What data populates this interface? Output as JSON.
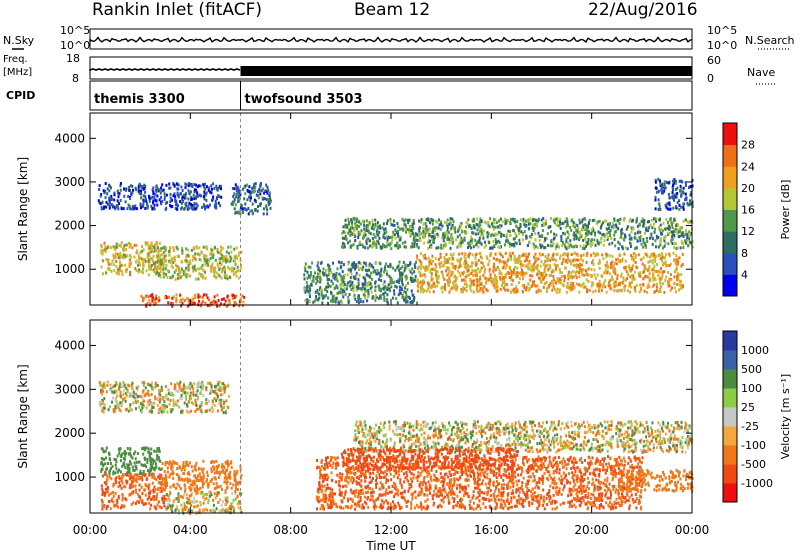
{
  "header": {
    "station": "Rankin Inlet (fitACF)",
    "beam": "Beam 12",
    "date": "22/Aug/2016"
  },
  "top_panels": {
    "nsky_label": "N.Sky",
    "nsearch_label": "N.Search",
    "nsky_ticks": [
      "10^5",
      "10^0"
    ],
    "nsearch_ticks": [
      "10^5",
      "10^0"
    ],
    "freq_label_line1": "Freq.",
    "freq_label_line2": "[MHz]",
    "freq_ticks": [
      "18",
      "8"
    ],
    "nave_label": "Nave",
    "nave_ticks": [
      "60",
      "0"
    ],
    "cpid_label": "CPID",
    "cpid_segments": [
      {
        "name": "themis 3300",
        "start_hour": 0
      },
      {
        "name": "twofsound 3503",
        "start_hour": 6
      }
    ]
  },
  "colors": {
    "power": [
      "#0000ee",
      "#2a4fbf",
      "#2e6e62",
      "#4f9a48",
      "#b4c634",
      "#f0a020",
      "#f07018",
      "#ee1010"
    ],
    "velocity": [
      "#ee1010",
      "#f04a14",
      "#f07818",
      "#f2a83a",
      "#c8c8c8",
      "#8ccc46",
      "#4c8c40",
      "#3a62a8",
      "#2a3aa0"
    ]
  },
  "chart_data": [
    {
      "type": "heatmap",
      "name": "power",
      "xlabel": "Time UT",
      "ylabel": "Slant Range [km]",
      "xlim": [
        0,
        24
      ],
      "ylim": [
        180,
        4580
      ],
      "x_ticks": [
        "00:00",
        "04:00",
        "08:00",
        "12:00",
        "16:00",
        "20:00",
        "00:00"
      ],
      "y_ticks": [
        "1000",
        "2000",
        "3000",
        "4000"
      ],
      "colorbar_label": "Power [dB]",
      "colorbar_ticks": [
        "4",
        "8",
        "12",
        "16",
        "20",
        "24",
        "28"
      ],
      "colorbar_range": [
        0,
        30
      ],
      "regions": [
        {
          "t": [
            0.4,
            2.8
          ],
          "r": [
            900,
            1650
          ],
          "value": 20
        },
        {
          "t": [
            2.5,
            6.0
          ],
          "r": [
            800,
            1550
          ],
          "value": 18
        },
        {
          "t": [
            2.0,
            6.2
          ],
          "r": [
            180,
            450
          ],
          "value": 28
        },
        {
          "t": [
            0.3,
            5.2
          ],
          "r": [
            2400,
            3000
          ],
          "value": 6
        },
        {
          "t": [
            5.6,
            7.2
          ],
          "r": [
            2300,
            3000
          ],
          "value": 8
        },
        {
          "t": [
            10.0,
            24.0
          ],
          "r": [
            1500,
            2200
          ],
          "value": 13
        },
        {
          "t": [
            13.0,
            23.6
          ],
          "r": [
            500,
            1400
          ],
          "value": 22
        },
        {
          "t": [
            8.5,
            13.0
          ],
          "r": [
            250,
            1200
          ],
          "value": 12
        },
        {
          "t": [
            22.5,
            24.0
          ],
          "r": [
            2400,
            3100
          ],
          "value": 7
        }
      ]
    },
    {
      "type": "heatmap",
      "name": "velocity",
      "xlabel": "Time UT",
      "ylabel": "Slant Range [km]",
      "xlim": [
        0,
        24
      ],
      "ylim": [
        180,
        4580
      ],
      "x_ticks": [
        "00:00",
        "04:00",
        "08:00",
        "12:00",
        "16:00",
        "20:00",
        "00:00"
      ],
      "y_ticks": [
        "1000",
        "2000",
        "3000",
        "4000"
      ],
      "colorbar_label": "Velocity [m s⁻¹]",
      "colorbar_ticks": [
        "1000",
        "500",
        "100",
        "25",
        "-25",
        "-100",
        "-500",
        "-1000"
      ],
      "regions": [
        {
          "t": [
            0.4,
            2.8
          ],
          "r": [
            1100,
            1700
          ],
          "value": 300
        },
        {
          "t": [
            0.4,
            3.0
          ],
          "r": [
            300,
            1100
          ],
          "value": -500
        },
        {
          "t": [
            3.0,
            6.0
          ],
          "r": [
            200,
            700
          ],
          "value": 0
        },
        {
          "t": [
            2.8,
            6.0
          ],
          "r": [
            700,
            1400
          ],
          "value": -300
        },
        {
          "t": [
            0.3,
            5.5
          ],
          "r": [
            2500,
            3200
          ],
          "value": 0
        },
        {
          "t": [
            10.5,
            24.0
          ],
          "r": [
            1600,
            2300
          ],
          "value": 0
        },
        {
          "t": [
            9.0,
            22.0
          ],
          "r": [
            300,
            1500
          ],
          "value": -500
        },
        {
          "t": [
            10.0,
            17.0
          ],
          "r": [
            1200,
            1700
          ],
          "value": -800
        },
        {
          "t": [
            21.0,
            24.0
          ],
          "r": [
            700,
            1200
          ],
          "value": -300
        }
      ]
    }
  ]
}
